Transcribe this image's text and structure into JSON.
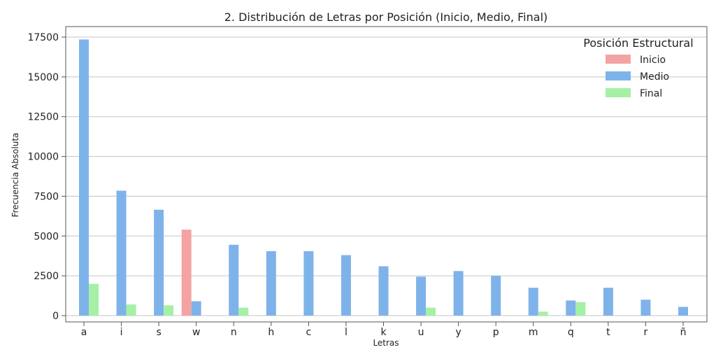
{
  "chart_data": {
    "type": "bar",
    "title": "2. Distribución de Letras por Posición (Inicio, Medio, Final)",
    "xlabel": "Letras",
    "ylabel": "Frecuencia Absoluta",
    "ylim": [
      0,
      18000
    ],
    "yticks": [
      0,
      2500,
      5000,
      7500,
      10000,
      12500,
      15000,
      17500
    ],
    "grid": true,
    "legend": {
      "title": "Posición Estructural",
      "placement": "top-right"
    },
    "categories": [
      "a",
      "i",
      "s",
      "w",
      "n",
      "h",
      "c",
      "l",
      "k",
      "u",
      "y",
      "p",
      "m",
      "q",
      "t",
      "r",
      "ñ"
    ],
    "series": [
      {
        "name": "Inicio",
        "color": "#f4a3a3",
        "values": [
          0,
          0,
          0,
          5400,
          0,
          0,
          0,
          0,
          0,
          0,
          0,
          0,
          0,
          0,
          0,
          0,
          0
        ]
      },
      {
        "name": "Medio",
        "color": "#7eb3ea",
        "values": [
          17350,
          7850,
          6650,
          900,
          4450,
          4050,
          4050,
          3800,
          3100,
          2450,
          2800,
          2500,
          1750,
          950,
          1750,
          1000,
          550
        ]
      },
      {
        "name": "Final",
        "color": "#a6f0a6",
        "values": [
          2000,
          700,
          650,
          0,
          500,
          0,
          0,
          0,
          0,
          500,
          0,
          0,
          250,
          850,
          0,
          0,
          0
        ]
      }
    ]
  }
}
